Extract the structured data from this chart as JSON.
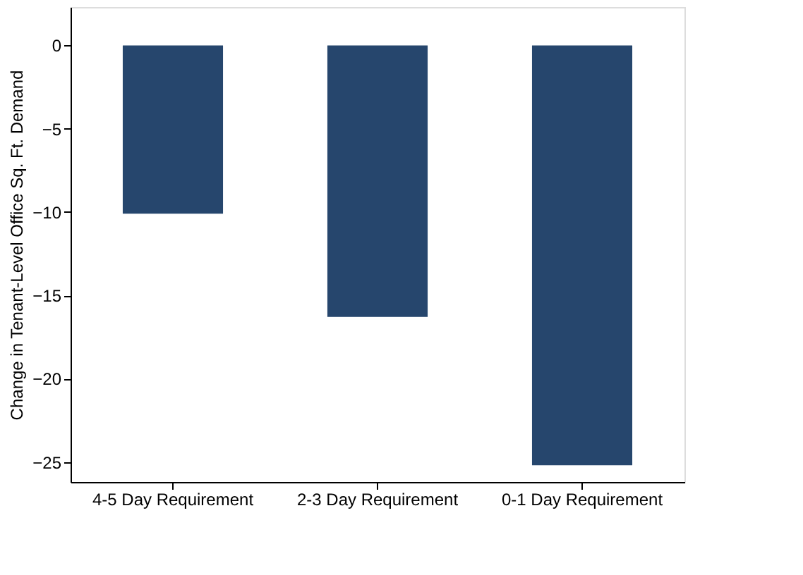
{
  "chart_data": {
    "type": "bar",
    "ylabel": "Change in Tenant-Level Office Sq. Ft. Demand",
    "categories": [
      "4-5 Day Requirement",
      "2-3 Day Requirement",
      "0-1 Day Requirement"
    ],
    "values": [
      -10.1,
      -16.3,
      -25.2
    ],
    "color": "#26466d",
    "ylim": [
      -26.2,
      2.3
    ],
    "yticks": [
      0,
      -5,
      -10,
      -15,
      -20,
      -25
    ],
    "grid": false
  }
}
